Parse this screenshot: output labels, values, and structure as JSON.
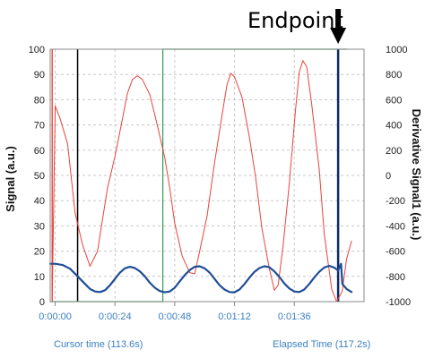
{
  "annotation": "Endpoint",
  "footer": {
    "cursor_label": "Cursor time (113.6s)",
    "elapsed_label": "Elapsed Time (117.2s)"
  },
  "colors": {
    "signal": "#e8443a",
    "derivative": "#1f4e96",
    "marker_green": "#2ca05a",
    "marker_black": "#000000",
    "endpoint_line": "#0b2a66",
    "grid": "#c8c8c8",
    "tick_x": "#3a7fc1"
  },
  "chart_data": {
    "type": "line",
    "title": "",
    "xlabel": "",
    "ylabel": "Signal (a.u.)",
    "y2label": "Derivative Signal1 (a.u.)",
    "x_unit": "seconds",
    "xlim": [
      -2,
      124
    ],
    "ylim": [
      0,
      100
    ],
    "y2lim": [
      -1000,
      1000
    ],
    "x_ticks": [
      0,
      24,
      48,
      72,
      96
    ],
    "x_tick_labels": [
      "0:00:00",
      "0:00:24",
      "0:00:48",
      "0:01:12",
      "0:01:36"
    ],
    "y_ticks": [
      0,
      10,
      20,
      30,
      40,
      50,
      60,
      70,
      80,
      90,
      100
    ],
    "y2_ticks": [
      -1000,
      -800,
      -600,
      -400,
      -200,
      0,
      200,
      400,
      600,
      800,
      1000
    ],
    "grid": true,
    "series": [
      {
        "axis": "right",
        "color": "#e8443a",
        "points": [
          [
            -1.2,
            1000
          ],
          [
            -1.2,
            -1000
          ],
          [
            0,
            550
          ],
          [
            2,
            450
          ],
          [
            5,
            250
          ],
          [
            8,
            -300
          ],
          [
            11,
            -550
          ],
          [
            14,
            -720
          ],
          [
            17,
            -600
          ],
          [
            19,
            -350
          ],
          [
            21,
            -100
          ],
          [
            24,
            150
          ],
          [
            27,
            450
          ],
          [
            29,
            650
          ],
          [
            31,
            760
          ],
          [
            33,
            790
          ],
          [
            35,
            760
          ],
          [
            38,
            640
          ],
          [
            41,
            400
          ],
          [
            44,
            140
          ],
          [
            46,
            -100
          ],
          [
            48,
            -380
          ],
          [
            51,
            -640
          ],
          [
            54,
            -770
          ],
          [
            56,
            -780
          ],
          [
            58,
            -600
          ],
          [
            61,
            -320
          ],
          [
            64,
            100
          ],
          [
            67,
            480
          ],
          [
            69,
            720
          ],
          [
            70.5,
            810
          ],
          [
            72,
            780
          ],
          [
            75,
            620
          ],
          [
            78,
            300
          ],
          [
            80.5,
            -20
          ],
          [
            83,
            -420
          ],
          [
            86,
            -740
          ],
          [
            88,
            -910
          ],
          [
            89.5,
            -870
          ],
          [
            91.5,
            -560
          ],
          [
            94,
            -60
          ],
          [
            96.5,
            520
          ],
          [
            98,
            820
          ],
          [
            99.5,
            910
          ],
          [
            101,
            860
          ],
          [
            103,
            560
          ],
          [
            106,
            50
          ],
          [
            108,
            -460
          ],
          [
            111,
            -900
          ],
          [
            113,
            -1000
          ],
          [
            115.2,
            -920
          ],
          [
            117,
            -660
          ],
          [
            119,
            -520
          ]
        ]
      },
      {
        "axis": "left",
        "color": "#1f4e96",
        "points": [
          [
            -2,
            15
          ],
          [
            0,
            15
          ],
          [
            3,
            14.5
          ],
          [
            6,
            13
          ],
          [
            9,
            10
          ],
          [
            12,
            7
          ],
          [
            14,
            5
          ],
          [
            16,
            4
          ],
          [
            18,
            3.8
          ],
          [
            20,
            4.5
          ],
          [
            22,
            6.5
          ],
          [
            24,
            9
          ],
          [
            26,
            11.5
          ],
          [
            28,
            13.2
          ],
          [
            30,
            13.8
          ],
          [
            32,
            13.3
          ],
          [
            34,
            12
          ],
          [
            36,
            10
          ],
          [
            38,
            7.5
          ],
          [
            40,
            5.5
          ],
          [
            42,
            4.2
          ],
          [
            44,
            3.7
          ],
          [
            46,
            4
          ],
          [
            48,
            5.5
          ],
          [
            50,
            8
          ],
          [
            52,
            10.5
          ],
          [
            54,
            12.5
          ],
          [
            56,
            13.8
          ],
          [
            58,
            14
          ],
          [
            60,
            13.2
          ],
          [
            62,
            11.5
          ],
          [
            64,
            9
          ],
          [
            66,
            6.5
          ],
          [
            68,
            4.8
          ],
          [
            70,
            3.8
          ],
          [
            72,
            3.7
          ],
          [
            74,
            4.8
          ],
          [
            76,
            7
          ],
          [
            78,
            9.5
          ],
          [
            80,
            11.8
          ],
          [
            82,
            13.3
          ],
          [
            84,
            14
          ],
          [
            86,
            13.6
          ],
          [
            88,
            12
          ],
          [
            90,
            9.8
          ],
          [
            92,
            7.2
          ],
          [
            94,
            5.2
          ],
          [
            96,
            4
          ],
          [
            98,
            3.8
          ],
          [
            100,
            4.8
          ],
          [
            102,
            7
          ],
          [
            104,
            9.5
          ],
          [
            106,
            11.8
          ],
          [
            108,
            13.5
          ],
          [
            110,
            14.2
          ],
          [
            112,
            13.5
          ],
          [
            113.6,
            12.3
          ],
          [
            114.8,
            15
          ],
          [
            115.3,
            7
          ],
          [
            117,
            5
          ],
          [
            119,
            3.8
          ]
        ]
      }
    ],
    "markers": [
      {
        "color": "#e8443a",
        "kind": "vertical",
        "x": -1.2
      },
      {
        "color": "#000000",
        "kind": "vertical",
        "x": 9
      },
      {
        "color": "#2ca05a",
        "kind": "step",
        "x": [
          -2,
          43.2,
          43.2,
          117.2
        ],
        "y": [
          0,
          0,
          100,
          100
        ]
      },
      {
        "color": "#0b2a66",
        "kind": "vertical",
        "x": 113.6
      }
    ]
  }
}
